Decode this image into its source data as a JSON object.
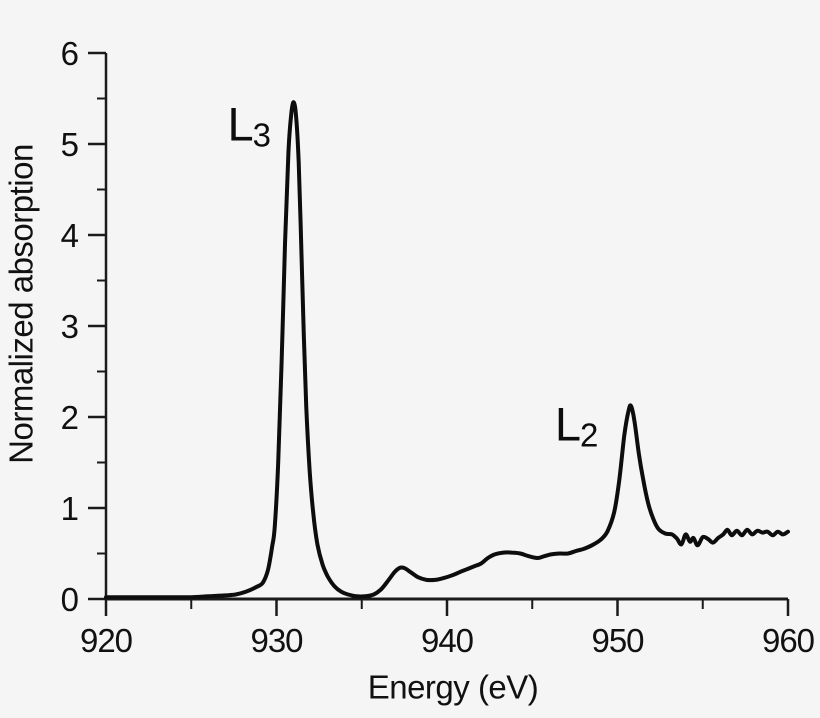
{
  "figure": {
    "background": "#f5f5f5",
    "curve_color": "#0d0d0d",
    "axis_color": "#1a1a1a",
    "text_color": "#111111"
  },
  "chart_data": {
    "type": "line",
    "title": "",
    "xlabel": "Energy (eV)",
    "ylabel": "Normalized absorption",
    "xlim": [
      920,
      960
    ],
    "ylim": [
      0,
      6
    ],
    "grid": false,
    "legend": null,
    "x_major_ticks": [
      920,
      930,
      940,
      950,
      960
    ],
    "x_minor_ticks": [
      925,
      935,
      945,
      955
    ],
    "y_major_ticks": [
      0,
      1,
      2,
      3,
      4,
      5,
      6
    ],
    "y_minor_ticks": [
      0.5,
      1.5,
      2.5,
      3.5,
      4.5,
      5.5
    ],
    "annotations": [
      {
        "text_main": "L",
        "text_sub": "3",
        "x": 928.4,
        "y": 5.2
      },
      {
        "text_main": "L",
        "text_sub": "2",
        "x": 947.6,
        "y": 1.9
      }
    ],
    "series": [
      {
        "name": "normalized absorption spectrum",
        "points": [
          [
            920.0,
            0.02
          ],
          [
            921.0,
            0.02
          ],
          [
            922.0,
            0.02
          ],
          [
            923.0,
            0.02
          ],
          [
            924.0,
            0.02
          ],
          [
            925.0,
            0.02
          ],
          [
            926.0,
            0.03
          ],
          [
            927.0,
            0.04
          ],
          [
            927.6,
            0.05
          ],
          [
            928.2,
            0.08
          ],
          [
            928.8,
            0.13
          ],
          [
            929.2,
            0.18
          ],
          [
            929.5,
            0.32
          ],
          [
            929.75,
            0.58
          ],
          [
            929.9,
            0.8
          ],
          [
            930.1,
            1.5
          ],
          [
            930.3,
            2.6
          ],
          [
            930.5,
            3.9
          ],
          [
            930.7,
            4.9
          ],
          [
            930.85,
            5.3
          ],
          [
            931.0,
            5.46
          ],
          [
            931.15,
            5.3
          ],
          [
            931.3,
            4.8
          ],
          [
            931.45,
            3.9
          ],
          [
            931.6,
            2.9
          ],
          [
            931.75,
            2.1
          ],
          [
            931.95,
            1.4
          ],
          [
            932.15,
            0.95
          ],
          [
            932.4,
            0.6
          ],
          [
            932.7,
            0.38
          ],
          [
            933.0,
            0.25
          ],
          [
            933.4,
            0.14
          ],
          [
            933.8,
            0.08
          ],
          [
            934.2,
            0.05
          ],
          [
            934.7,
            0.03
          ],
          [
            935.2,
            0.03
          ],
          [
            935.7,
            0.05
          ],
          [
            936.1,
            0.1
          ],
          [
            936.5,
            0.19
          ],
          [
            936.9,
            0.29
          ],
          [
            937.2,
            0.34
          ],
          [
            937.5,
            0.34
          ],
          [
            937.9,
            0.29
          ],
          [
            938.3,
            0.24
          ],
          [
            938.8,
            0.21
          ],
          [
            939.3,
            0.21
          ],
          [
            939.8,
            0.23
          ],
          [
            940.3,
            0.26
          ],
          [
            940.8,
            0.3
          ],
          [
            941.2,
            0.33
          ],
          [
            941.6,
            0.36
          ],
          [
            942.0,
            0.39
          ],
          [
            942.4,
            0.45
          ],
          [
            942.8,
            0.49
          ],
          [
            943.3,
            0.51
          ],
          [
            943.8,
            0.51
          ],
          [
            944.3,
            0.5
          ],
          [
            944.8,
            0.47
          ],
          [
            945.3,
            0.45
          ],
          [
            945.7,
            0.47
          ],
          [
            946.1,
            0.49
          ],
          [
            946.6,
            0.5
          ],
          [
            947.1,
            0.5
          ],
          [
            947.6,
            0.53
          ],
          [
            948.0,
            0.55
          ],
          [
            948.5,
            0.59
          ],
          [
            949.0,
            0.65
          ],
          [
            949.4,
            0.74
          ],
          [
            949.8,
            0.95
          ],
          [
            950.1,
            1.3
          ],
          [
            950.4,
            1.8
          ],
          [
            950.65,
            2.07
          ],
          [
            950.8,
            2.12
          ],
          [
            951.0,
            1.95
          ],
          [
            951.25,
            1.6
          ],
          [
            951.5,
            1.32
          ],
          [
            951.8,
            1.05
          ],
          [
            952.1,
            0.88
          ],
          [
            952.4,
            0.77
          ],
          [
            952.8,
            0.72
          ],
          [
            953.2,
            0.71
          ],
          [
            953.5,
            0.66
          ],
          [
            953.75,
            0.6
          ],
          [
            954.0,
            0.71
          ],
          [
            954.25,
            0.63
          ],
          [
            954.45,
            0.67
          ],
          [
            954.7,
            0.59
          ],
          [
            955.0,
            0.68
          ],
          [
            955.3,
            0.66
          ],
          [
            955.6,
            0.62
          ],
          [
            955.9,
            0.67
          ],
          [
            956.2,
            0.71
          ],
          [
            956.45,
            0.76
          ],
          [
            956.7,
            0.7
          ],
          [
            957.0,
            0.75
          ],
          [
            957.3,
            0.7
          ],
          [
            957.6,
            0.76
          ],
          [
            957.9,
            0.71
          ],
          [
            958.2,
            0.75
          ],
          [
            958.5,
            0.73
          ],
          [
            958.8,
            0.74
          ],
          [
            959.1,
            0.7
          ],
          [
            959.4,
            0.74
          ],
          [
            959.7,
            0.71
          ],
          [
            960.0,
            0.74
          ]
        ]
      }
    ]
  }
}
